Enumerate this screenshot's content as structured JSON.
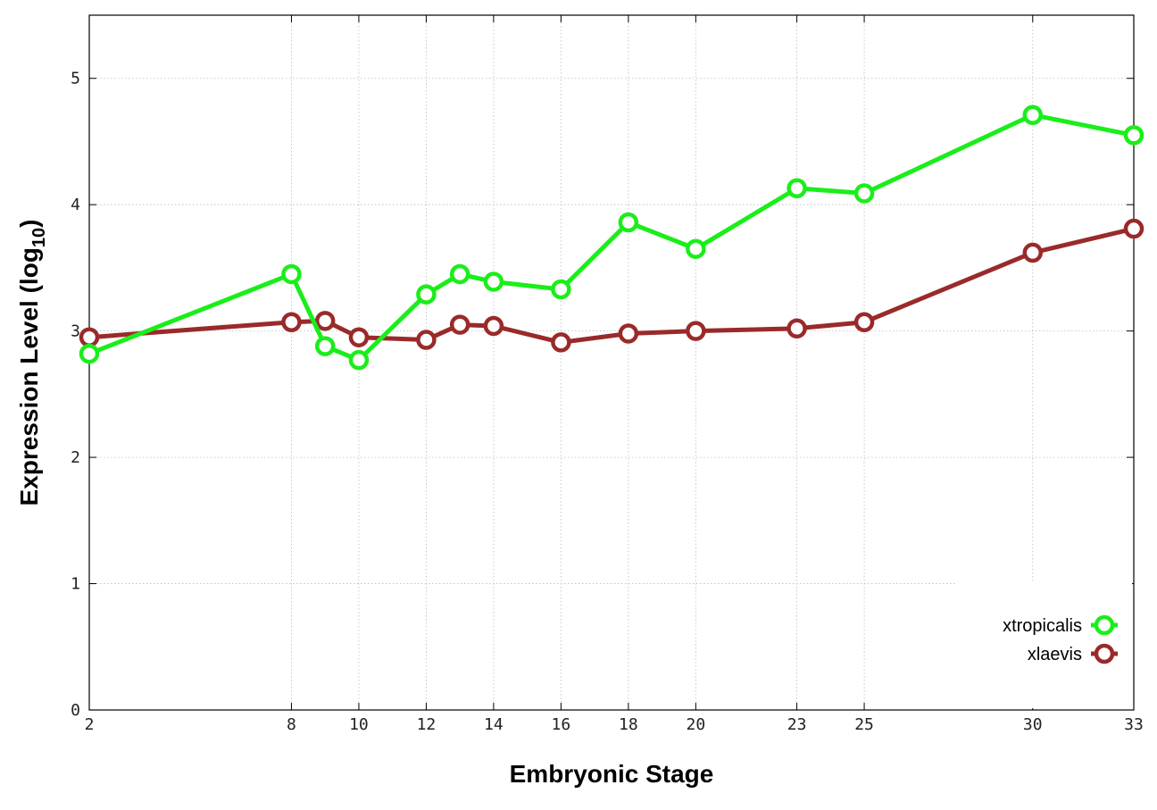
{
  "chart_data": {
    "type": "line",
    "xlabel": "Embryonic Stage",
    "ylabel_main": "Expression Level (log",
    "ylabel_sub": "10",
    "ylabel_close": ")",
    "x": [
      2,
      8,
      9,
      10,
      12,
      13,
      14,
      16,
      18,
      20,
      23,
      25,
      30,
      33
    ],
    "x_ticks": [
      2,
      8,
      10,
      12,
      14,
      16,
      18,
      20,
      23,
      25,
      30,
      33
    ],
    "y_ticks": [
      0,
      1,
      2,
      3,
      4,
      5
    ],
    "xlim": [
      2,
      33
    ],
    "ylim": [
      0,
      5.5
    ],
    "grid": true,
    "legend_position": "bottom-right",
    "series": [
      {
        "name": "xtropicalis",
        "color": "#1aee1a",
        "values": [
          2.82,
          3.45,
          2.88,
          2.77,
          3.29,
          3.45,
          3.39,
          3.33,
          3.86,
          3.65,
          4.13,
          4.09,
          4.71,
          4.55
        ]
      },
      {
        "name": "xlaevis",
        "color": "#9a2a2a",
        "values": [
          2.95,
          3.07,
          3.08,
          2.95,
          2.93,
          3.05,
          3.04,
          2.91,
          2.98,
          3.0,
          3.02,
          3.07,
          3.62,
          3.81
        ]
      }
    ]
  }
}
